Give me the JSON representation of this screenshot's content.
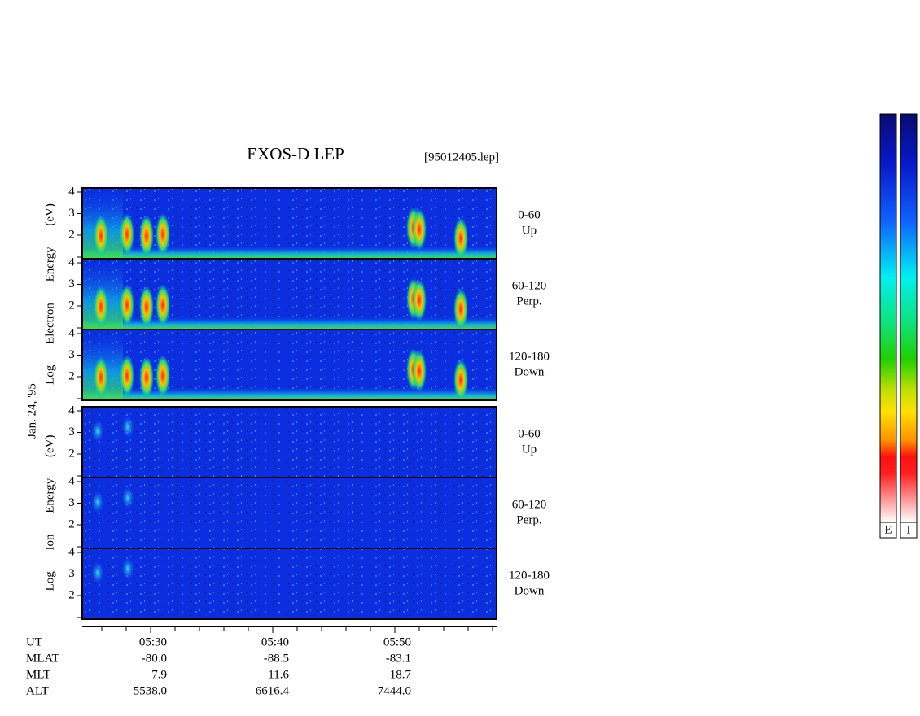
{
  "header": {
    "title": "EXOS-D LEP",
    "file": "[95012405.lep]"
  },
  "date": "Jan. 24, '95",
  "groups": [
    {
      "axis_label": "Log Electron Energy (eV)",
      "panels": [
        {
          "range": "0-60",
          "direction": "Up",
          "yticks": [
            4,
            3,
            2
          ]
        },
        {
          "range": "60-120",
          "direction": "Perp.",
          "yticks": [
            4,
            3,
            2
          ]
        },
        {
          "range": "120-180",
          "direction": "Down",
          "yticks": [
            4,
            3,
            2
          ]
        }
      ]
    },
    {
      "axis_label": "Log Ion Energy (eV)",
      "panels": [
        {
          "range": "0-60",
          "direction": "Up",
          "yticks": [
            4,
            3,
            2
          ]
        },
        {
          "range": "60-120",
          "direction": "Perp.",
          "yticks": [
            4,
            3,
            2
          ]
        },
        {
          "range": "120-180",
          "direction": "Down",
          "yticks": [
            4,
            3,
            2
          ]
        }
      ]
    }
  ],
  "ephemeris": {
    "rows": [
      [
        "UT",
        "05:30",
        "05:40",
        "05:50"
      ],
      [
        "MLAT",
        "-80.0",
        "-88.5",
        "-83.1"
      ],
      [
        "MLT",
        "7.9",
        "11.6",
        "18.7"
      ],
      [
        "ALT",
        "5538.0",
        "6616.4",
        "7444.0"
      ]
    ]
  },
  "colorbars": [
    "E",
    "I"
  ]
}
